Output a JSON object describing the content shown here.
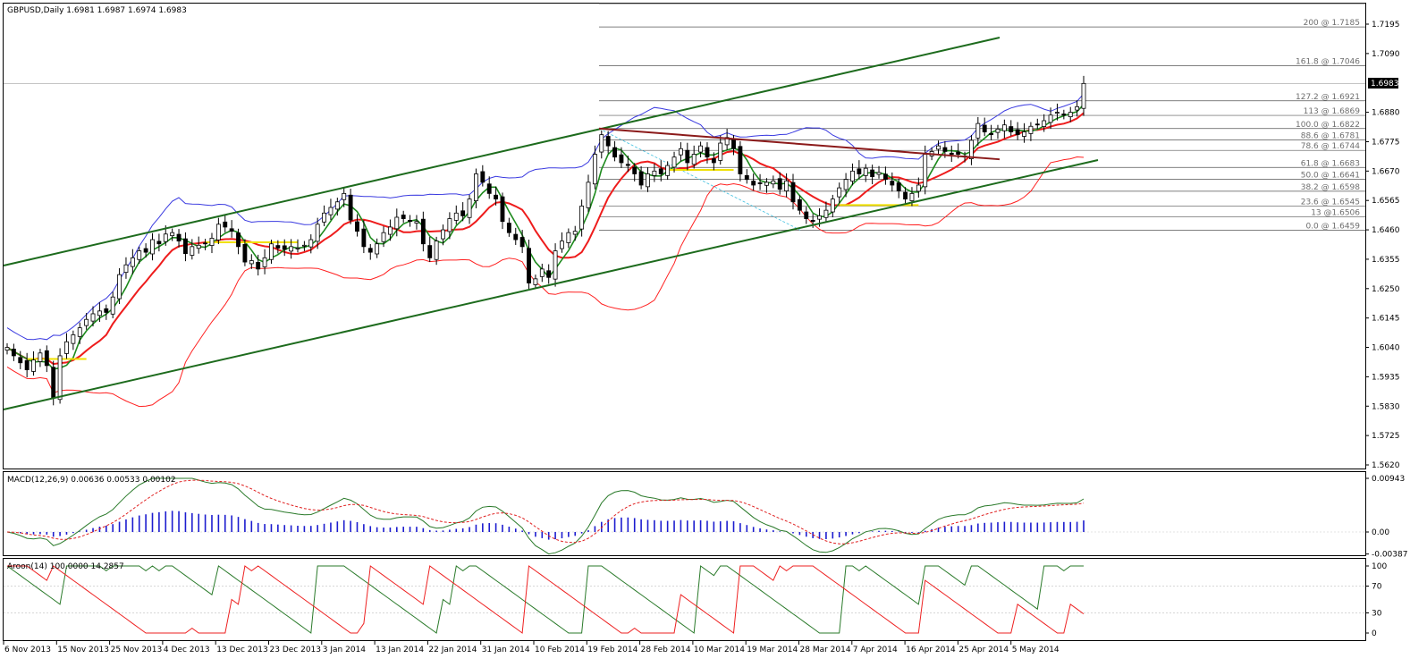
{
  "main_title": "GBPUSD,Daily  1.6981 1.6987 1.6974 1.6983",
  "macd_title": "MACD(12,26,9) 0.00636 0.00533 0.00102",
  "aroon_title": "Aroon(14) 100.0000 14.2857",
  "current_price": "1.6983",
  "colors": {
    "bull_body": "#ffffff",
    "bear_body": "#000000",
    "upper_channel": "#1d6b1d",
    "bollinger_upper": "#3a3ae0",
    "bollinger_lower": "#ff2020",
    "tenkan": "#1d8a1d",
    "kijun": "#ee1c1c",
    "kijun_flat": "#f0e000",
    "resistance": "#8b1a1a",
    "fib_line": "#555555",
    "fib_diag": "#40c0e0",
    "macd_main": "#2a7a2a",
    "macd_signal": "#e02020",
    "macd_hist": "#1c1ccf",
    "aroon_up": "#2a7a2a",
    "aroon_down": "#ee2020"
  },
  "price_axis": {
    "ticks": [
      "1.7195",
      "1.7090",
      "1.6880",
      "1.6775",
      "1.6670",
      "1.6565",
      "1.6460",
      "1.6355",
      "1.6250",
      "1.6145",
      "1.6040",
      "1.5935",
      "1.5830",
      "1.5725",
      "1.5620"
    ]
  },
  "macd_axis": {
    "ticks": [
      "0.00943",
      "0.00",
      "-0.00387"
    ]
  },
  "aroon_axis": {
    "ticks": [
      "100",
      "70",
      "30",
      "0"
    ]
  },
  "date_axis": {
    "ticks": [
      "6 Nov 2013",
      "15 Nov 2013",
      "25 Nov 2013",
      "4 Dec 2013",
      "13 Dec 2013",
      "23 Dec 2013",
      "3 Jan 2014",
      "13 Jan 2014",
      "22 Jan 2014",
      "31 Jan 2014",
      "10 Feb 2014",
      "19 Feb 2014",
      "28 Feb 2014",
      "10 Mar 2014",
      "19 Mar 2014",
      "28 Mar 2014",
      "7 Apr 2014",
      "16 Apr 2014",
      "25 Apr 2014",
      "5 May 2014"
    ]
  },
  "fibonacci": [
    {
      "label": "200 @ 1.7185",
      "price": 1.7185
    },
    {
      "label": "161.8 @ 1.7046",
      "price": 1.7046
    },
    {
      "label": "127.2 @ 1.6921",
      "price": 1.6921
    },
    {
      "label": "113 @ 1.6869",
      "price": 1.6869
    },
    {
      "label": "100.0 @ 1.6822",
      "price": 1.6822
    },
    {
      "label": "88.6 @ 1.6781",
      "price": 1.6781
    },
    {
      "label": "78.6 @ 1.6744",
      "price": 1.6744
    },
    {
      "label": "61.8 @ 1.6683",
      "price": 1.6683
    },
    {
      "label": "50.0 @ 1.6641",
      "price": 1.6641
    },
    {
      "label": "38.2 @ 1.6598",
      "price": 1.6598
    },
    {
      "label": "23.6 @ 1.6545",
      "price": 1.6545
    },
    {
      "label": "13 @1.6506",
      "price": 1.6506
    },
    {
      "label": "0.0 @ 1.6459",
      "price": 1.6459
    }
  ],
  "chart_data": {
    "type": "candlestick",
    "symbol": "GBPUSD",
    "timeframe": "Daily",
    "ylim": [
      1.562,
      1.723
    ],
    "ohlc_last": {
      "open": 1.6981,
      "high": 1.6987,
      "low": 1.6974,
      "close": 1.6983
    },
    "closes": [
      1.604,
      1.601,
      1.5985,
      1.596,
      1.5995,
      1.602,
      1.5975,
      1.586,
      1.601,
      1.606,
      1.6085,
      1.611,
      1.614,
      1.616,
      1.617,
      1.6165,
      1.622,
      1.63,
      1.6335,
      1.636,
      1.6385,
      1.638,
      1.6425,
      1.641,
      1.6445,
      1.645,
      1.642,
      1.6375,
      1.64,
      1.6405,
      1.641,
      1.643,
      1.648,
      1.647,
      1.6455,
      1.64,
      1.6345,
      1.635,
      1.632,
      1.636,
      1.641,
      1.6395,
      1.639,
      1.64,
      1.6395,
      1.6405,
      1.6425,
      1.648,
      1.652,
      1.654,
      1.656,
      1.659,
      1.6495,
      1.6455,
      1.64,
      1.638,
      1.641,
      1.645,
      1.647,
      1.6505,
      1.65,
      1.649,
      1.649,
      1.641,
      1.636,
      1.642,
      1.646,
      1.65,
      1.652,
      1.651,
      1.657,
      1.666,
      1.663,
      1.659,
      1.657,
      1.649,
      1.645,
      1.6425,
      1.64,
      1.627,
      1.6285,
      1.632,
      1.629,
      1.6385,
      1.642,
      1.645,
      1.6455,
      1.6545,
      1.663,
      1.673,
      1.68,
      1.676,
      1.672,
      1.67,
      1.669,
      1.666,
      1.662,
      1.666,
      1.667,
      1.666,
      1.669,
      1.672,
      1.675,
      1.67,
      1.673,
      1.676,
      1.672,
      1.67,
      1.677,
      1.679,
      1.675,
      1.666,
      1.664,
      1.662,
      1.6625,
      1.663,
      1.6635,
      1.6605,
      1.6635,
      1.656,
      1.653,
      1.65,
      1.649,
      1.651,
      1.653,
      1.657,
      1.661,
      1.664,
      1.667,
      1.666,
      1.668,
      1.665,
      1.6665,
      1.664,
      1.662,
      1.66,
      1.657,
      1.659,
      1.662,
      1.673,
      1.674,
      1.676,
      1.674,
      1.673,
      1.673,
      1.672,
      1.678,
      1.684,
      1.681,
      1.68,
      1.682,
      1.6835,
      1.681,
      1.68,
      1.681,
      1.683,
      1.6835,
      1.685,
      1.687,
      1.688,
      1.687,
      1.688,
      1.69,
      1.6983
    ]
  }
}
